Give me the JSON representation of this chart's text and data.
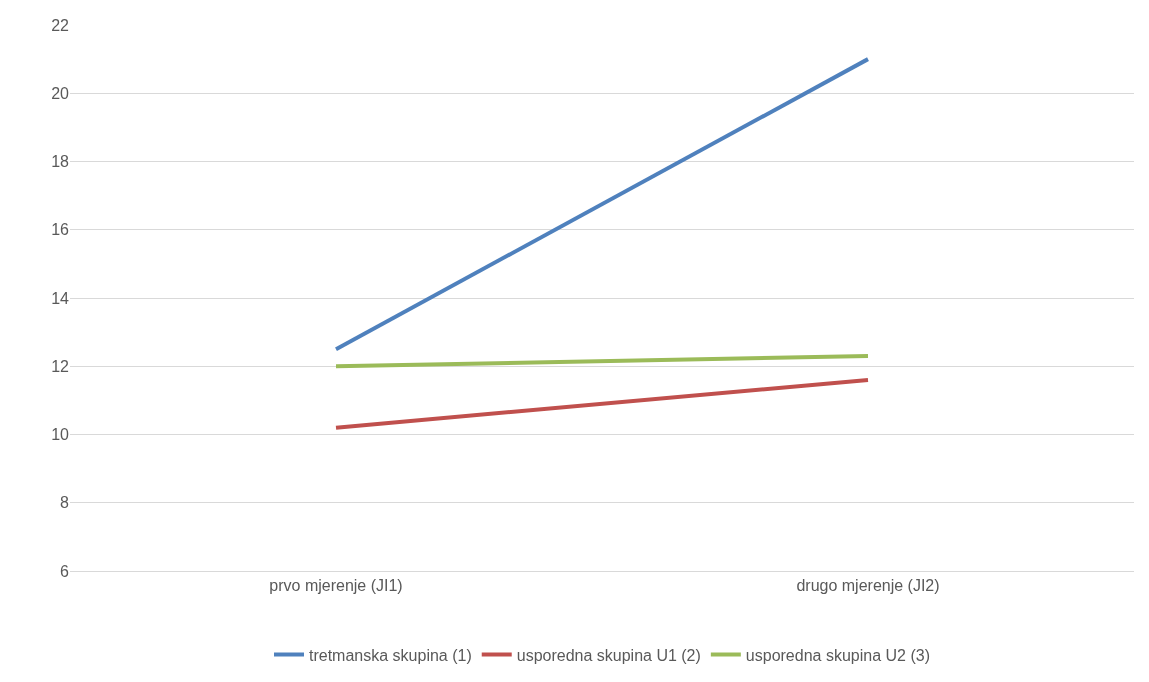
{
  "chart_data": {
    "type": "line",
    "categories": [
      "prvo mjerenje (JI1)",
      "drugo mjerenje (JI2)"
    ],
    "series": [
      {
        "name": "tretmanska skupina (1)",
        "color": "#4f81bd",
        "values": [
          12.5,
          21.0
        ]
      },
      {
        "name": "usporedna skupina U1 (2)",
        "color": "#c0504d",
        "values": [
          10.2,
          11.6
        ]
      },
      {
        "name": "usporedna skupina U2 (3)",
        "color": "#9bbb59",
        "values": [
          12.0,
          12.3
        ]
      }
    ],
    "ylim": [
      6,
      22
    ],
    "yticks": [
      6,
      8,
      10,
      12,
      14,
      16,
      18,
      20,
      22
    ],
    "grid": "y",
    "legend": "bottom",
    "marker": "none",
    "line_style": "solid"
  }
}
